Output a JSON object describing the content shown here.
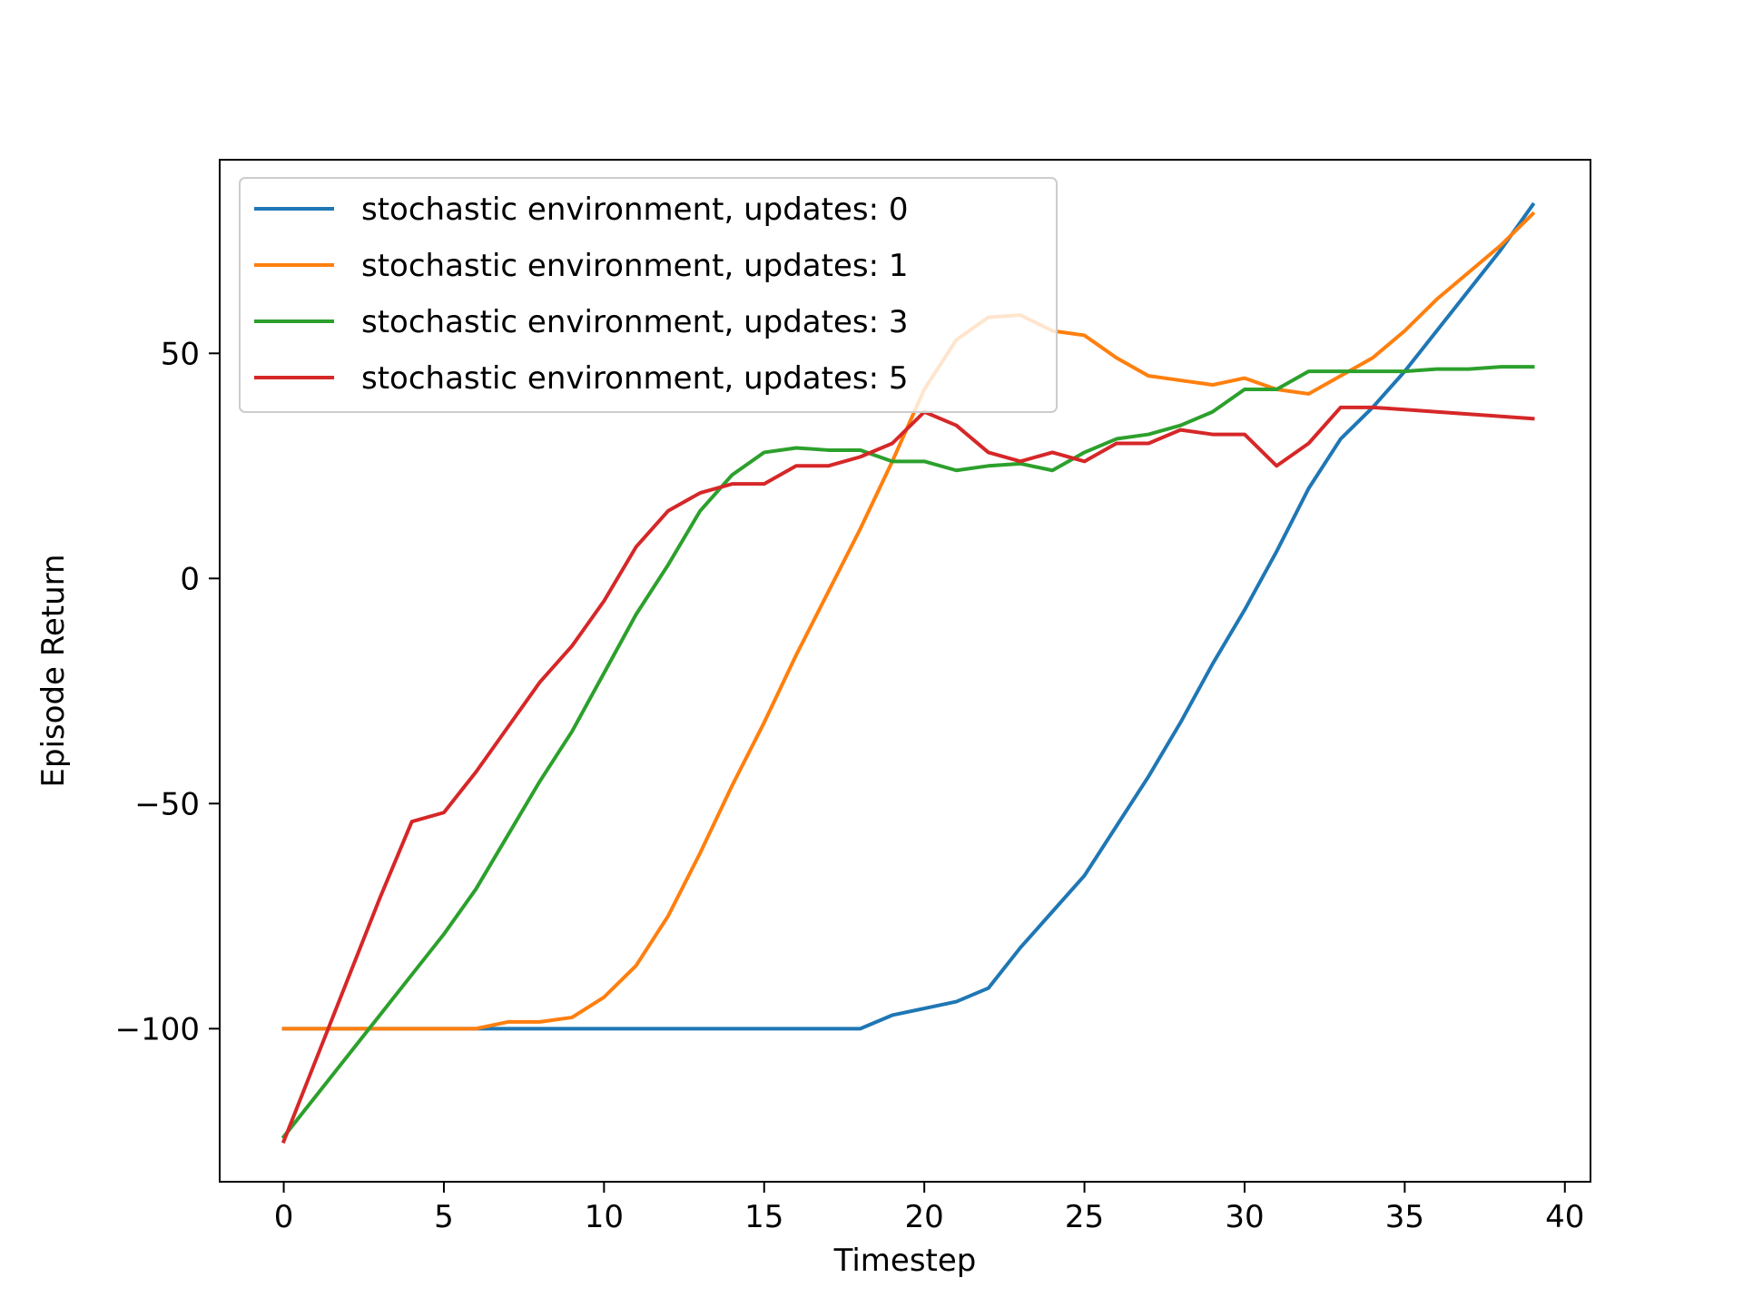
{
  "chart_data": {
    "type": "line",
    "title": "",
    "xlabel": "Timestep",
    "ylabel": "Episode Return",
    "xlim": [
      -2,
      40.8
    ],
    "ylim": [
      -134,
      93
    ],
    "xticks": [
      0,
      5,
      10,
      15,
      20,
      25,
      30,
      35,
      40
    ],
    "xtick_labels": [
      "0",
      "5",
      "10",
      "15",
      "20",
      "25",
      "30",
      "35",
      "40"
    ],
    "yticks": [
      -100,
      -50,
      0,
      50
    ],
    "ytick_labels": [
      "−100",
      "−50",
      "0",
      "50"
    ],
    "legend_position": "top-left",
    "grid": false,
    "x": [
      0,
      1,
      2,
      3,
      4,
      5,
      6,
      7,
      8,
      9,
      10,
      11,
      12,
      13,
      14,
      15,
      16,
      17,
      18,
      19,
      20,
      21,
      22,
      23,
      24,
      25,
      26,
      27,
      28,
      29,
      30,
      31,
      32,
      33,
      34,
      35,
      36,
      37,
      38,
      39
    ],
    "series": [
      {
        "name": "stochastic environment, updates: 0",
        "color": "#1f77b4",
        "values": [
          -100,
          -100,
          -100,
          -100,
          -100,
          -100,
          -100,
          -100,
          -100,
          -100,
          -100,
          -100,
          -100,
          -100,
          -100,
          -100,
          -100,
          -100,
          -100,
          -97,
          -95.5,
          -94,
          -91,
          -82,
          -74,
          -66,
          -55,
          -44,
          -32,
          -19,
          -7,
          6,
          20,
          31,
          38,
          46,
          55,
          64,
          73,
          83
        ]
      },
      {
        "name": "stochastic environment, updates: 1",
        "color": "#ff7f0e",
        "values": [
          -100,
          -100,
          -100,
          -100,
          -100,
          -100,
          -100,
          -98.5,
          -98.5,
          -97.5,
          -93,
          -86,
          -75,
          -61,
          -46,
          -32,
          -17,
          -3,
          11,
          26,
          42,
          53,
          58,
          58.5,
          55,
          54,
          49,
          45,
          44,
          43,
          44.5,
          42,
          41,
          45,
          49,
          55,
          62,
          68,
          74,
          81
        ]
      },
      {
        "name": "stochastic environment, updates: 3",
        "color": "#2ca02c",
        "values": [
          -124,
          -115,
          -106,
          -97,
          -88,
          -79,
          -69,
          -57,
          -45,
          -34,
          -21,
          -8,
          3,
          15,
          23,
          28,
          29,
          28.5,
          28.5,
          26,
          26,
          24,
          25,
          25.5,
          24,
          28,
          31,
          32,
          34,
          37,
          42,
          42,
          46,
          46,
          46,
          46,
          46.5,
          46.5,
          47,
          47
        ]
      },
      {
        "name": "stochastic environment, updates: 5",
        "color": "#d62728",
        "values": [
          -125,
          -107,
          -89,
          -71,
          -54,
          -52,
          -43,
          -33,
          -23,
          -15,
          -5,
          7,
          15,
          19,
          21,
          21,
          25,
          25,
          27,
          30,
          37,
          34,
          28,
          26,
          28,
          26,
          30,
          30,
          33,
          32,
          32,
          25,
          30,
          38,
          38,
          37.5,
          37,
          36.5,
          36,
          35.5
        ]
      }
    ]
  }
}
